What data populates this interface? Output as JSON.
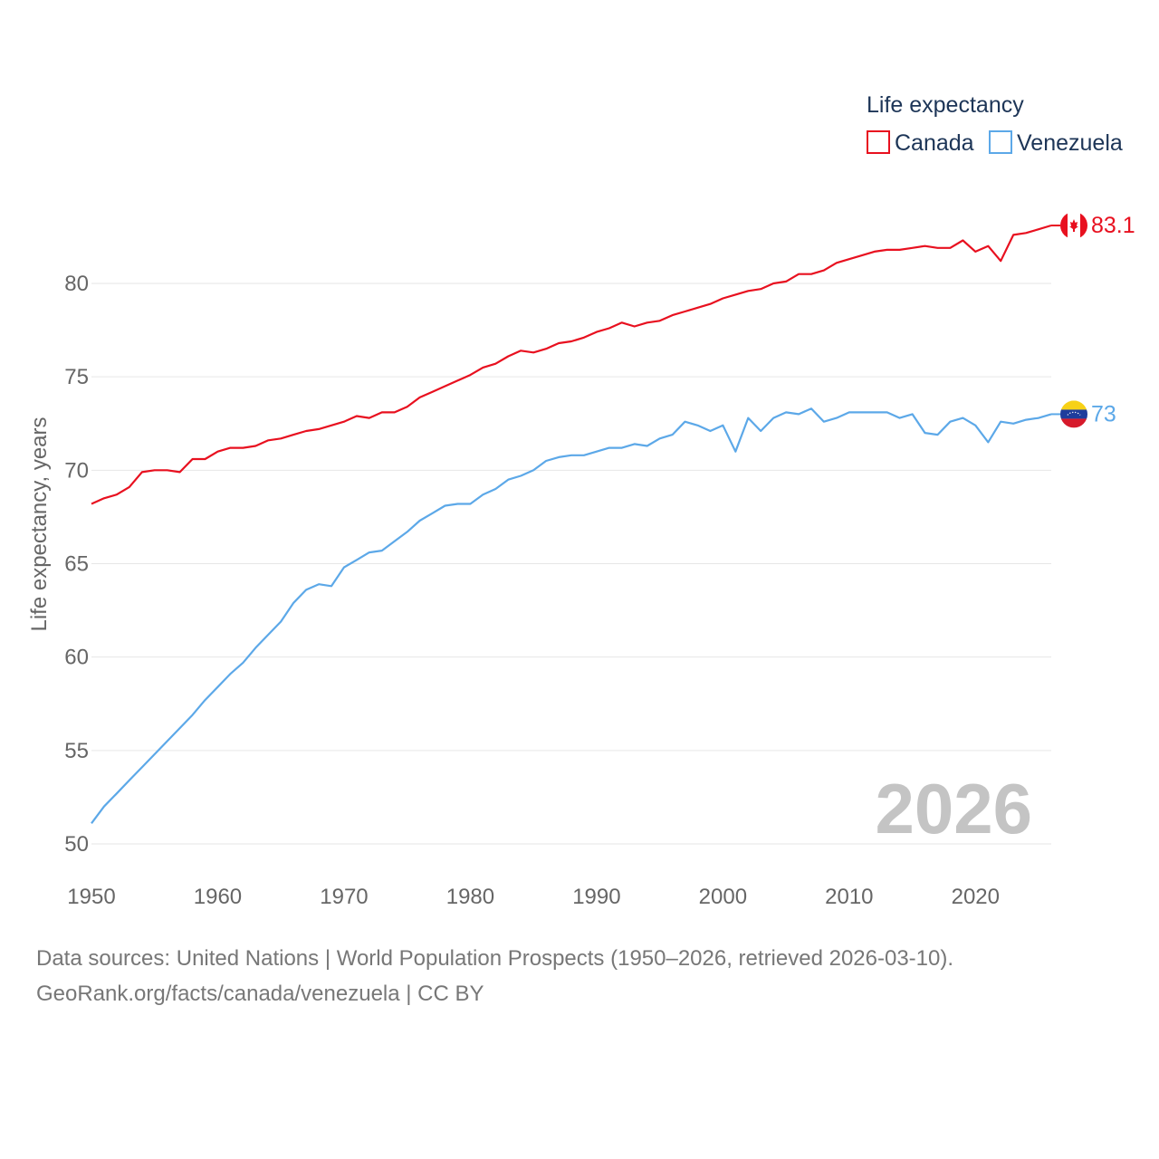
{
  "chart_data": {
    "type": "line",
    "ylabel": "Life expectancy, years",
    "ylim": [
      50,
      84
    ],
    "xlim": [
      1950,
      2026
    ],
    "yticks": [
      50,
      55,
      60,
      65,
      70,
      75,
      80
    ],
    "xticks": [
      1950,
      1960,
      1970,
      1980,
      1990,
      2000,
      2010,
      2020
    ],
    "grid": true,
    "legend": {
      "title": "Life expectancy",
      "placement": "top-right"
    },
    "current_year": "2026",
    "x": [
      1950,
      1951,
      1952,
      1953,
      1954,
      1955,
      1956,
      1957,
      1958,
      1959,
      1960,
      1961,
      1962,
      1963,
      1964,
      1965,
      1966,
      1967,
      1968,
      1969,
      1970,
      1971,
      1972,
      1973,
      1974,
      1975,
      1976,
      1977,
      1978,
      1979,
      1980,
      1981,
      1982,
      1983,
      1984,
      1985,
      1986,
      1987,
      1988,
      1989,
      1990,
      1991,
      1992,
      1993,
      1994,
      1995,
      1996,
      1997,
      1998,
      1999,
      2000,
      2001,
      2002,
      2003,
      2004,
      2005,
      2006,
      2007,
      2008,
      2009,
      2010,
      2011,
      2012,
      2013,
      2014,
      2015,
      2016,
      2017,
      2018,
      2019,
      2020,
      2021,
      2022,
      2023,
      2024,
      2025,
      2026
    ],
    "series": [
      {
        "name": "Canada",
        "color": "#e8101f",
        "end_label": "83.1",
        "values": [
          68.2,
          68.5,
          68.7,
          69.1,
          69.9,
          70.0,
          70.0,
          69.9,
          70.6,
          70.6,
          71.0,
          71.2,
          71.2,
          71.3,
          71.6,
          71.7,
          71.9,
          72.1,
          72.2,
          72.4,
          72.6,
          72.9,
          72.8,
          73.1,
          73.1,
          73.4,
          73.9,
          74.2,
          74.5,
          74.8,
          75.1,
          75.5,
          75.7,
          76.1,
          76.4,
          76.3,
          76.5,
          76.8,
          76.9,
          77.1,
          77.4,
          77.6,
          77.9,
          77.7,
          77.9,
          78.0,
          78.3,
          78.5,
          78.7,
          78.9,
          79.2,
          79.4,
          79.6,
          79.7,
          80.0,
          80.1,
          80.5,
          80.5,
          80.7,
          81.1,
          81.3,
          81.5,
          81.7,
          81.8,
          81.8,
          81.9,
          82.0,
          81.9,
          81.9,
          82.3,
          81.7,
          82.0,
          81.2,
          82.6,
          82.7,
          82.9,
          83.1
        ]
      },
      {
        "name": "Venezuela",
        "color": "#5ca8e8",
        "end_label": "73",
        "values": [
          51.1,
          52.0,
          52.7,
          53.4,
          54.1,
          54.8,
          55.5,
          56.2,
          56.9,
          57.7,
          58.4,
          59.1,
          59.7,
          60.5,
          61.2,
          61.9,
          62.9,
          63.6,
          63.9,
          63.8,
          64.8,
          65.2,
          65.6,
          65.7,
          66.2,
          66.7,
          67.3,
          67.7,
          68.1,
          68.2,
          68.2,
          68.7,
          69.0,
          69.5,
          69.7,
          70.0,
          70.5,
          70.7,
          70.8,
          70.8,
          71.0,
          71.2,
          71.2,
          71.4,
          71.3,
          71.7,
          71.9,
          72.6,
          72.4,
          72.1,
          72.4,
          71.0,
          72.8,
          72.1,
          72.8,
          73.1,
          73.0,
          73.3,
          72.6,
          72.8,
          73.1,
          73.1,
          73.1,
          73.1,
          72.8,
          73.0,
          72.0,
          71.9,
          72.6,
          72.8,
          72.4,
          71.5,
          72.6,
          72.5,
          72.7,
          72.8,
          73.0
        ]
      }
    ]
  },
  "source": {
    "line1": "Data sources: United Nations | World Population Prospects (1950–2026, retrieved 2026-03-10).",
    "line2": "GeoRank.org/facts/canada/venezuela | CC BY"
  },
  "icons": {
    "canada_marker": "canada-flag-icon",
    "venezuela_marker": "venezuela-flag-icon"
  }
}
